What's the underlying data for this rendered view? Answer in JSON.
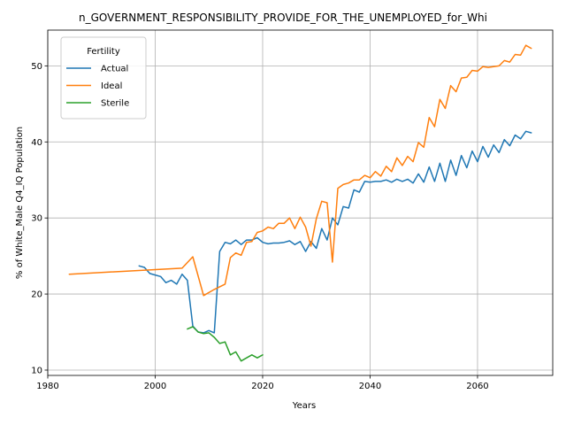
{
  "chart_data": {
    "type": "line",
    "title": "n_GOVERNMENT_RESPONSIBILITY_PROVIDE_FOR_THE_UNEMPLOYED_for_Whi",
    "xlabel": "Years",
    "ylabel": "% of White_Male Q4_IQ Population",
    "xlim": [
      1980,
      2074
    ],
    "ylim": [
      9.3,
      54.7
    ],
    "xticks": [
      1980,
      2000,
      2020,
      2040,
      2060
    ],
    "yticks": [
      10,
      20,
      30,
      40,
      50
    ],
    "grid": true,
    "legend": {
      "title": "Fertility",
      "position": "upper-left"
    },
    "series": [
      {
        "name": "Actual",
        "color": "#1f77b4",
        "x": [
          1997,
          1998,
          1999,
          2000,
          2001,
          2002,
          2003,
          2004,
          2005,
          2006,
          2007,
          2008,
          2009,
          2010,
          2011,
          2012,
          2013,
          2014,
          2015,
          2016,
          2017,
          2018,
          2019,
          2020,
          2021,
          2022,
          2023,
          2024,
          2025,
          2026,
          2027,
          2028,
          2029,
          2030,
          2031,
          2032,
          2033,
          2034,
          2035,
          2036,
          2037,
          2038,
          2039,
          2040,
          2041,
          2042,
          2043,
          2044,
          2045,
          2046,
          2047,
          2048,
          2049,
          2050,
          2051,
          2052,
          2053,
          2054,
          2055,
          2056,
          2057,
          2058,
          2059,
          2060,
          2061,
          2062,
          2063,
          2064,
          2065,
          2066,
          2067,
          2068,
          2069,
          2070
        ],
        "values": [
          23.7,
          23.5,
          22.7,
          22.5,
          22.3,
          21.5,
          21.8,
          21.3,
          22.6,
          21.8,
          15.8,
          15.0,
          14.9,
          15.2,
          14.9,
          25.6,
          26.8,
          26.6,
          27.1,
          26.5,
          27.1,
          27.1,
          27.4,
          26.8,
          26.6,
          26.7,
          26.7,
          26.8,
          27.0,
          26.5,
          26.9,
          25.6,
          26.9,
          26.0,
          28.6,
          27.1,
          30.0,
          29.1,
          31.5,
          31.3,
          33.7,
          33.4,
          34.8,
          34.7,
          34.8,
          34.8,
          35.0,
          34.7,
          35.1,
          34.8,
          35.1,
          34.6,
          35.8,
          34.7,
          36.7,
          34.8,
          37.2,
          34.8,
          37.6,
          35.6,
          38.2,
          36.6,
          38.8,
          37.4,
          39.4,
          38.0,
          39.6,
          38.6,
          40.3,
          39.5,
          40.9,
          40.4,
          41.4,
          41.2
        ]
      },
      {
        "name": "Ideal",
        "color": "#ff7f0e",
        "x": [
          1984,
          2005,
          2007,
          2009,
          2011,
          2013,
          2014,
          2015,
          2016,
          2017,
          2018,
          2019,
          2020,
          2021,
          2022,
          2023,
          2024,
          2025,
          2026,
          2027,
          2028,
          2029,
          2030,
          2031,
          2032,
          2033,
          2034,
          2035,
          2036,
          2037,
          2038,
          2039,
          2040,
          2041,
          2042,
          2043,
          2044,
          2045,
          2046,
          2047,
          2048,
          2049,
          2050,
          2051,
          2052,
          2053,
          2054,
          2055,
          2056,
          2057,
          2058,
          2059,
          2060,
          2061,
          2062,
          2063,
          2064,
          2065,
          2066,
          2067,
          2068,
          2069,
          2070
        ],
        "values": [
          22.6,
          23.4,
          24.9,
          19.8,
          20.6,
          21.3,
          24.8,
          25.4,
          25.1,
          26.8,
          26.9,
          28.1,
          28.3,
          28.8,
          28.6,
          29.3,
          29.3,
          30.0,
          28.6,
          30.1,
          28.8,
          26.3,
          29.9,
          32.2,
          32.0,
          24.2,
          33.9,
          34.4,
          34.6,
          35.0,
          35.0,
          35.6,
          35.3,
          36.1,
          35.5,
          36.8,
          36.1,
          37.9,
          36.9,
          38.1,
          37.4,
          39.9,
          39.3,
          43.2,
          42.0,
          45.6,
          44.4,
          47.4,
          46.6,
          48.4,
          48.5,
          49.4,
          49.3,
          49.9,
          49.8,
          49.9,
          50.0,
          50.7,
          50.5,
          51.5,
          51.4,
          52.7,
          52.3
        ]
      },
      {
        "name": "Sterile",
        "color": "#2ca02c",
        "x": [
          2006,
          2007,
          2008,
          2009,
          2010,
          2011,
          2012,
          2013,
          2014,
          2015,
          2016,
          2017,
          2018,
          2019,
          2020
        ],
        "values": [
          15.4,
          15.7,
          15.0,
          14.8,
          14.9,
          14.3,
          13.5,
          13.7,
          12.0,
          12.4,
          11.2,
          11.6,
          12.0,
          11.6,
          12.0
        ]
      }
    ]
  }
}
